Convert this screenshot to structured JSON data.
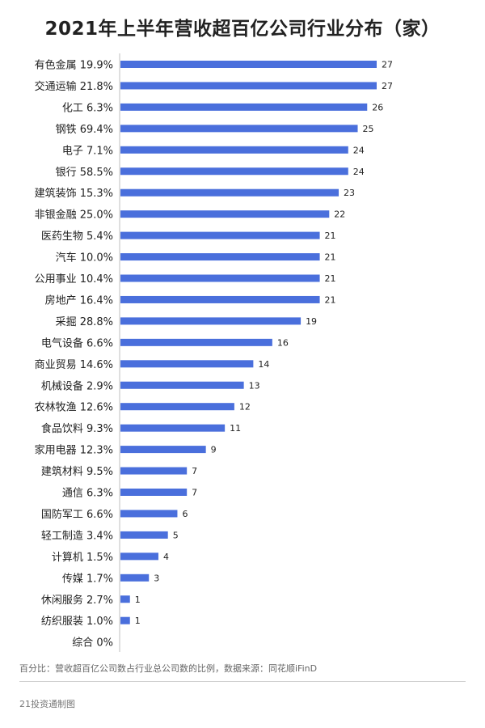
{
  "chart_data": {
    "type": "bar",
    "orientation": "horizontal",
    "title": "2021年上半年营收超百亿公司行业分布（家）",
    "categories": [
      "有色金属 19.9%",
      "交通运输 21.8%",
      "化工 6.3%",
      "钢铁 69.4%",
      "电子 7.1%",
      "银行 58.5%",
      "建筑装饰 15.3%",
      "非银金融 25.0%",
      "医药生物 5.4%",
      "汽车 10.0%",
      "公用事业 10.4%",
      "房地产 16.4%",
      "采掘 28.8%",
      "电气设备 6.6%",
      "商业贸易 14.6%",
      "机械设备 2.9%",
      "农林牧渔 12.6%",
      "食品饮料 9.3%",
      "家用电器 12.3%",
      "建筑材料 9.5%",
      "通信 6.3%",
      "国防军工 6.6%",
      "轻工制造 3.4%",
      "计算机 1.5%",
      "传媒 1.7%",
      "休闲服务 2.7%",
      "纺织服装 1.0%",
      "综合 0%"
    ],
    "values": [
      27,
      27,
      26,
      25,
      24,
      24,
      23,
      22,
      21,
      21,
      21,
      21,
      19,
      16,
      14,
      13,
      12,
      11,
      9,
      7,
      7,
      6,
      5,
      4,
      3,
      1,
      1,
      0
    ],
    "data_labels": [
      "27",
      "27",
      "26",
      "25",
      "24",
      "24",
      "23",
      "22",
      "21",
      "21",
      "21",
      "21",
      "19",
      "16",
      "14",
      "13",
      "12",
      "11",
      "9",
      "7",
      "7",
      "6",
      "5",
      "4",
      "3",
      "1",
      "1",
      ""
    ],
    "xlim": [
      0,
      27
    ],
    "bar_color": "#4a6fdc",
    "grid": false,
    "legend": "none"
  },
  "note": "百分比：营收超百亿公司数占行业总公司数的比例，数据来源：同花顺iFinD",
  "footer": "21投资通制图"
}
